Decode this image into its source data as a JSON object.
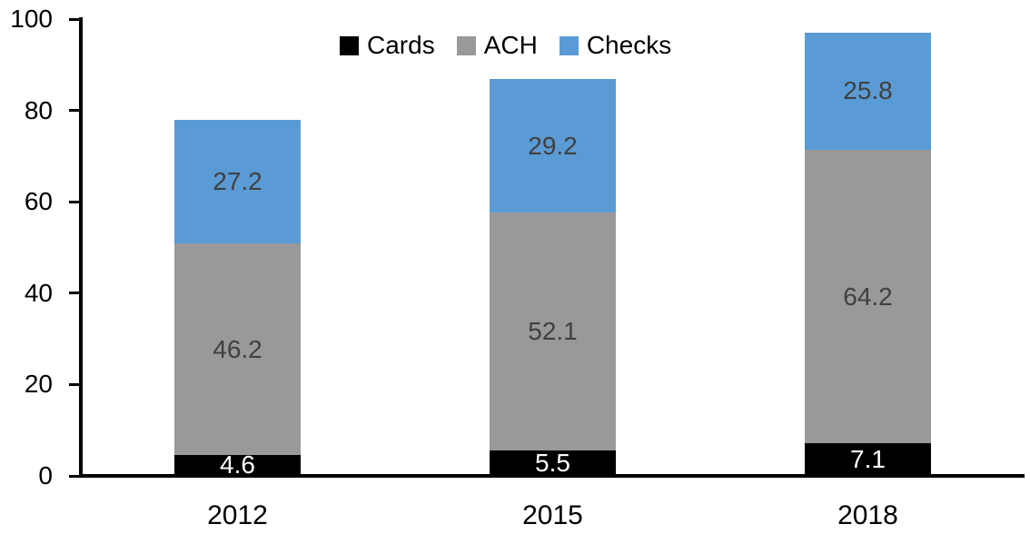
{
  "chart_data": {
    "type": "bar",
    "stacked": true,
    "title": "",
    "xlabel": "",
    "ylabel": "",
    "categories": [
      "2012",
      "2015",
      "2018"
    ],
    "series": [
      {
        "name": "Cards",
        "values": [
          4.6,
          5.5,
          7.1
        ],
        "color": "#000000",
        "label_color": "#FFFFFF"
      },
      {
        "name": "ACH",
        "values": [
          46.2,
          52.1,
          64.2
        ],
        "color": "#999999",
        "label_color": "#404040"
      },
      {
        "name": "Checks",
        "values": [
          27.2,
          29.2,
          25.8
        ],
        "color": "#5B9BD5",
        "label_color": "#404040"
      }
    ],
    "yticks": [
      "0",
      "20",
      "40",
      "60",
      "80",
      "100"
    ],
    "ylim": [
      0,
      100
    ],
    "grid": false,
    "legend_position": "top-center",
    "axis_color": "#000000",
    "data_labels_shown": true
  }
}
